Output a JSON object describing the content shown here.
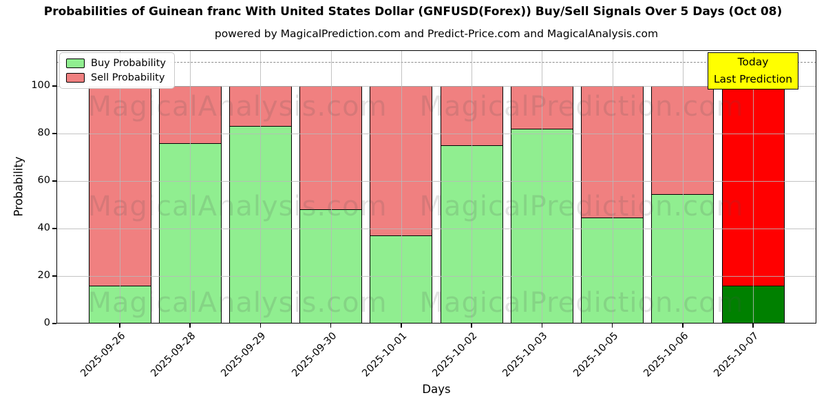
{
  "chart_data": {
    "type": "bar",
    "stacked": true,
    "title": "Probabilities of Guinean franc With United States Dollar (GNFUSD(Forex)) Buy/Sell Signals Over 5 Days (Oct 08)",
    "subtitle": "powered by MagicalPrediction.com and Predict-Price.com and MagicalAnalysis.com",
    "xlabel": "Days",
    "ylabel": "Probability",
    "ylim": [
      0,
      115
    ],
    "yticks": [
      0,
      20,
      40,
      60,
      80,
      100
    ],
    "grid": true,
    "dashed_line_y": 110,
    "legend_position": "upper-left",
    "categories": [
      "2025-09-26",
      "2025-09-28",
      "2025-09-29",
      "2025-09-30",
      "2025-10-01",
      "2025-10-02",
      "2025-10-03",
      "2025-10-05",
      "2025-10-06",
      "2025-10-07"
    ],
    "series": [
      {
        "name": "Buy Probability",
        "color": "#90EE90",
        "values": [
          16,
          76,
          83,
          48,
          37,
          75,
          82,
          44.5,
          54.5,
          16
        ]
      },
      {
        "name": "Sell Probability",
        "color": "#F08080",
        "values": [
          84,
          24,
          17,
          52,
          63,
          25,
          18,
          55.5,
          45.5,
          84
        ]
      }
    ],
    "bar_total": 100,
    "bar_edge_color": "#000000",
    "highlight_last_bar": {
      "buy_color": "#008000",
      "sell_color": "#FF0000"
    },
    "annotation": {
      "lines": [
        "Today",
        "Last Prediction"
      ],
      "bg_color": "#FFFF00"
    },
    "watermarks": [
      "MagicalAnalysis.com",
      "MagicalPrediction.com"
    ]
  }
}
